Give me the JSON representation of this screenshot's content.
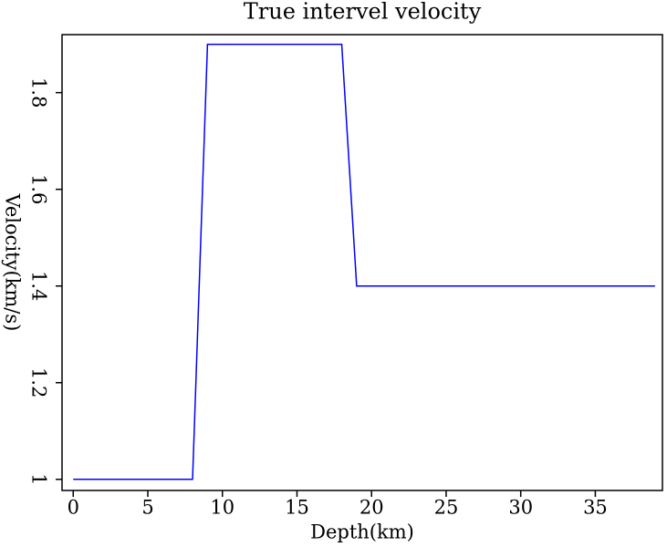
{
  "chart_data": {
    "type": "line",
    "title": "True intervel velocity",
    "x_label": "Depth(km)",
    "y_label": "Velocity(km/s)",
    "x": [
      0,
      8,
      9,
      18,
      19,
      39
    ],
    "series": [
      {
        "color": "#0000ff",
        "values": [
          1,
          1,
          1.9,
          1.9,
          1.4,
          1.4
        ]
      }
    ],
    "xlim": [
      -0.75,
      39.5
    ],
    "ylim": [
      0.977,
      1.92
    ],
    "xticks": [
      0,
      5,
      10,
      15,
      20,
      25,
      30,
      35
    ],
    "yticks": [
      1,
      1.2,
      1.4,
      1.6,
      1.8
    ]
  }
}
